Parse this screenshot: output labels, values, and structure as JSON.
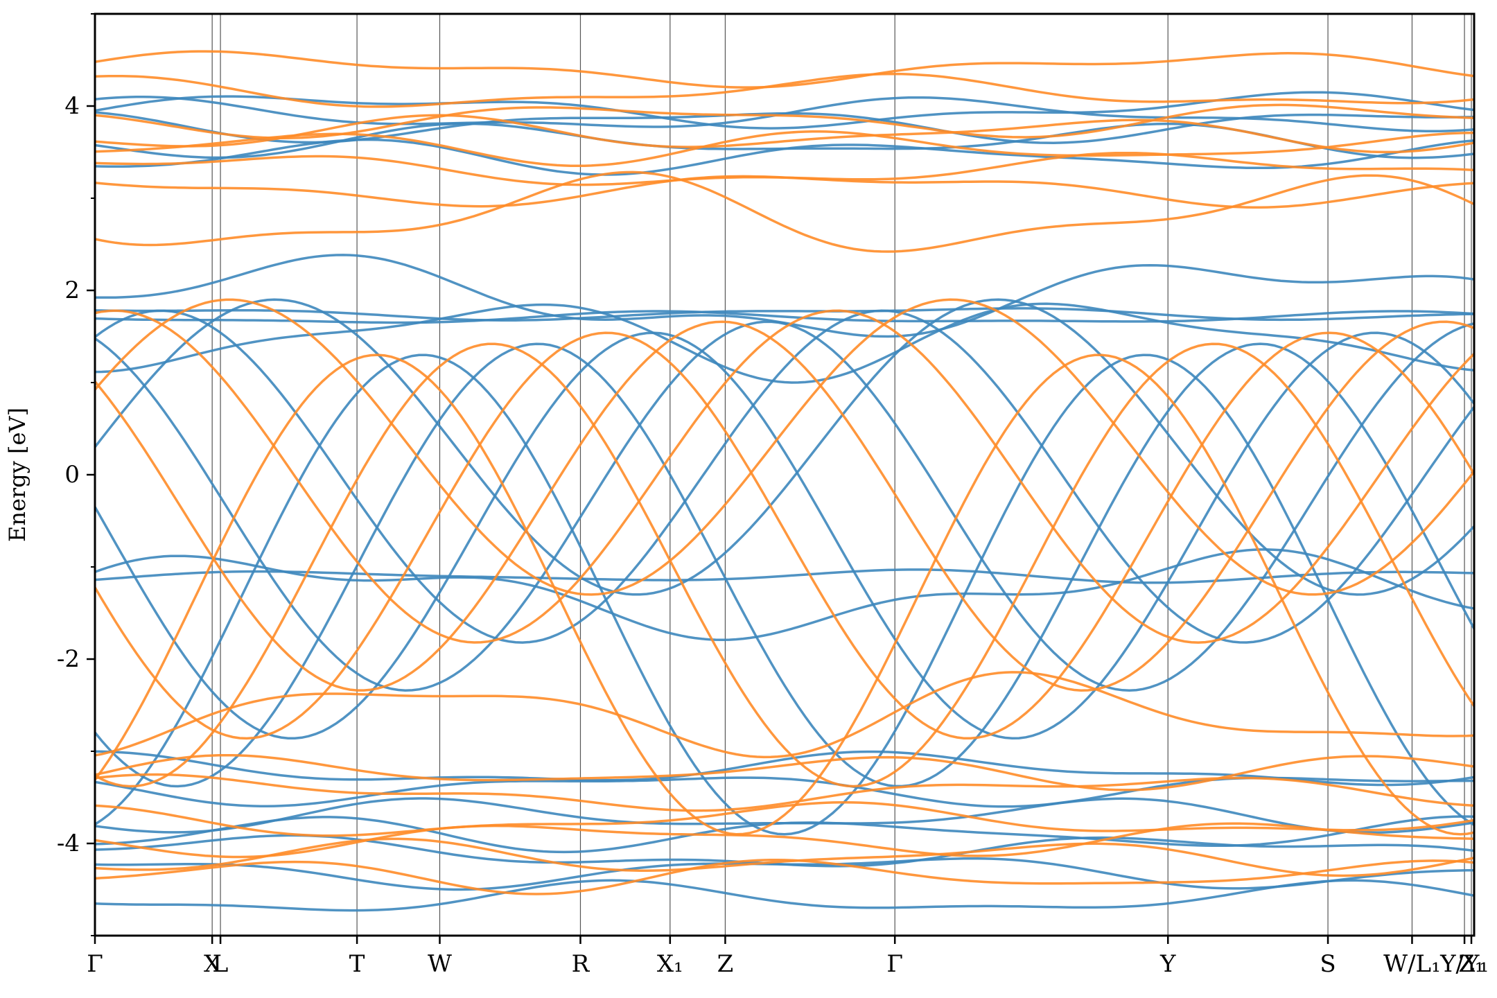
{
  "chart_data": {
    "type": "line",
    "title": "",
    "xlabel": "",
    "ylabel": "Energy [eV]",
    "ylim": [
      -5,
      5
    ],
    "yticks": [
      -4,
      -2,
      0,
      2,
      4
    ],
    "yticklabels": [
      "-4",
      "-2",
      "0",
      "2",
      "4"
    ],
    "xlim": [
      0,
      100
    ],
    "kpath": [
      {
        "label": "Γ",
        "pos": 0.0
      },
      {
        "label": "X",
        "pos": 8.5
      },
      {
        "label": "L",
        "pos": 9.1
      },
      {
        "label": "T",
        "pos": 19.0
      },
      {
        "label": "W",
        "pos": 25.0
      },
      {
        "label": "R",
        "pos": 35.2
      },
      {
        "label": "X₁",
        "pos": 41.7
      },
      {
        "label": "Z",
        "pos": 45.7
      },
      {
        "label": "Γ",
        "pos": 58.0
      },
      {
        "label": "Y",
        "pos": 77.8
      },
      {
        "label": "S",
        "pos": 89.4
      },
      {
        "label": "W/L₁",
        "pos": 95.5
      },
      {
        "label": "Y/Y₁",
        "pos": 99.3
      },
      {
        "label": "Z₁",
        "pos": 99.8
      }
    ],
    "colors": {
      "series_a": "#3d87bd",
      "series_b": "#ff8c28"
    },
    "series": [
      {
        "color": "#3d87bd",
        "flat_bands": [
          3.95,
          3.9,
          3.8,
          3.62,
          3.45,
          1.9,
          1.75,
          1.7,
          1.5,
          -1.1,
          -1.3,
          -3.2,
          -3.4,
          -3.7,
          -3.9,
          -4.1,
          -4.3,
          -4.6
        ]
      },
      {
        "color": "#ff8c28",
        "flat_bands": [
          4.4,
          4.15,
          3.85,
          3.7,
          3.55,
          3.3,
          3.1,
          2.8,
          -2.6,
          -3.22,
          -3.45,
          -3.75,
          -3.95,
          -4.15,
          -4.35
        ]
      }
    ]
  }
}
